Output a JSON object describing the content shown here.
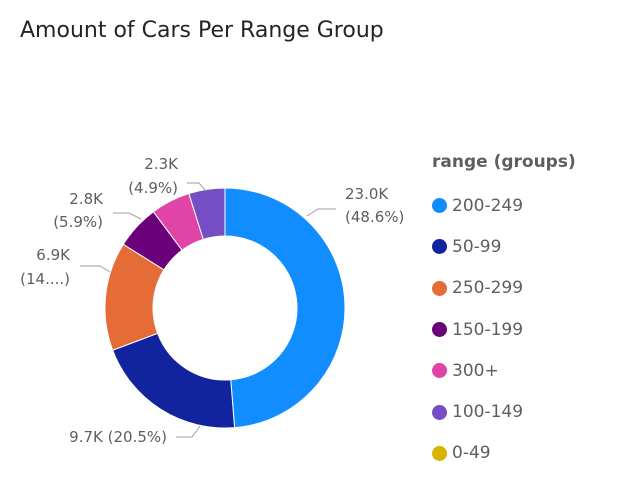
{
  "title": "Amount of Cars Per Range Group",
  "chart_data": {
    "type": "pie",
    "donut": true,
    "title": "Amount of Cars Per Range Group",
    "legend_title": "range (groups)",
    "legend_position": "right",
    "slices": [
      {
        "name": "200-249",
        "value": 23.0,
        "label": "23.0K",
        "percent_label": "(48.6%)",
        "color": "#118DFF"
      },
      {
        "name": "50-99",
        "value": 9.7,
        "label": "9.7K (20.5%)",
        "percent_label": "",
        "color": "#12239E"
      },
      {
        "name": "250-299",
        "value": 6.9,
        "label": "6.9K",
        "percent_label": "(14....)",
        "color": "#E66C37"
      },
      {
        "name": "150-199",
        "value": 2.8,
        "label": "2.8K",
        "percent_label": "(5.9%)",
        "color": "#6B007B"
      },
      {
        "name": "300+",
        "value": 2.5,
        "label": "",
        "percent_label": "",
        "color": "#E044A7"
      },
      {
        "name": "100-149",
        "value": 2.3,
        "label": "2.3K",
        "percent_label": "(4.9%)",
        "color": "#744EC2"
      },
      {
        "name": "0-49",
        "value": 0,
        "label": "",
        "percent_label": "",
        "color": "#D9B300"
      }
    ]
  }
}
